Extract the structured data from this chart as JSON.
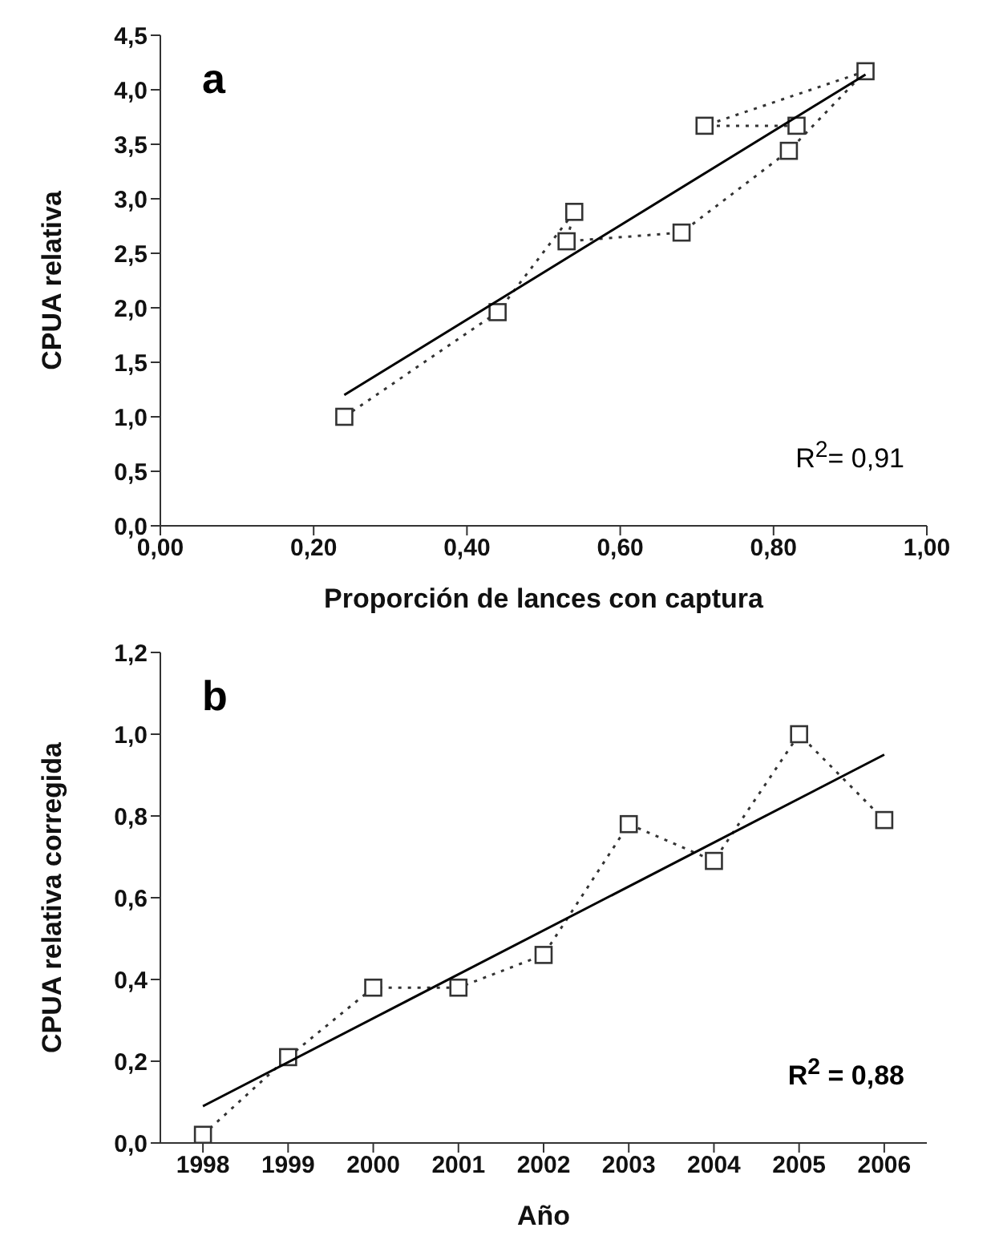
{
  "chart_data": [
    {
      "type": "line",
      "title": "a",
      "xlabel": "Proporción de lances con captura",
      "ylabel": "CPUA relativa",
      "xlim": [
        0,
        1
      ],
      "xticks": [
        {
          "value": 0,
          "label": "0,00"
        },
        {
          "value": 0.2,
          "label": "0,20"
        },
        {
          "value": 0.4,
          "label": "0,40"
        },
        {
          "value": 0.6,
          "label": "0,60"
        },
        {
          "value": 0.8,
          "label": "0,80"
        },
        {
          "value": 1,
          "label": "1,00"
        }
      ],
      "ylim": [
        0,
        4.5
      ],
      "yticks": [
        {
          "value": 0,
          "label": "0,0"
        },
        {
          "value": 0.5,
          "label": "0,5"
        },
        {
          "value": 1,
          "label": "1,0"
        },
        {
          "value": 1.5,
          "label": "1,5"
        },
        {
          "value": 2,
          "label": "2,0"
        },
        {
          "value": 2.5,
          "label": "2,5"
        },
        {
          "value": 3,
          "label": "3,0"
        },
        {
          "value": 3.5,
          "label": "3,5"
        },
        {
          "value": 4,
          "label": "4,0"
        },
        {
          "value": 4.5,
          "label": "4,5"
        }
      ],
      "grid": false,
      "annotations": [
        "R$^{2}$= 0,91"
      ],
      "series": [
        {
          "color": "#333333",
          "marker": "square",
          "line_style": "dotted",
          "x": [
            0.24,
            0.44,
            0.54,
            0.53,
            0.68,
            0.82,
            0.92,
            0.71,
            0.83
          ],
          "values": [
            1.0,
            1.96,
            2.88,
            2.61,
            2.69,
            3.44,
            4.17,
            3.67,
            3.67
          ]
        },
        {
          "color": "#000000",
          "marker": "none",
          "line_style": "solid",
          "x": [
            0.24,
            0.92
          ],
          "values": [
            1.2,
            4.14
          ]
        }
      ]
    },
    {
      "type": "line",
      "title": "b",
      "xlabel": "Año",
      "ylabel": "CPUA relativa corregida",
      "categories": [
        "1998",
        "1999",
        "2000",
        "2001",
        "2002",
        "2003",
        "2004",
        "2005",
        "2006"
      ],
      "ylim": [
        0,
        1.2
      ],
      "yticks": [
        {
          "value": 0,
          "label": "0,0"
        },
        {
          "value": 0.2,
          "label": "0,2"
        },
        {
          "value": 0.4,
          "label": "0,4"
        },
        {
          "value": 0.6,
          "label": "0,6"
        },
        {
          "value": 0.8,
          "label": "0,8"
        },
        {
          "value": 1,
          "label": "1,0"
        },
        {
          "value": 1.2,
          "label": "1,2"
        }
      ],
      "grid": false,
      "annotations": [
        "R$^{2}$ = 0,88"
      ],
      "series": [
        {
          "color": "#333333",
          "marker": "square",
          "line_style": "dotted",
          "values": [
            0.02,
            0.21,
            0.38,
            0.38,
            0.46,
            0.78,
            0.69,
            1.0,
            0.79
          ]
        },
        {
          "color": "#000000",
          "marker": "none",
          "line_style": "solid",
          "values": [
            0.09,
            null,
            null,
            null,
            null,
            null,
            null,
            null,
            0.95
          ]
        }
      ]
    }
  ]
}
